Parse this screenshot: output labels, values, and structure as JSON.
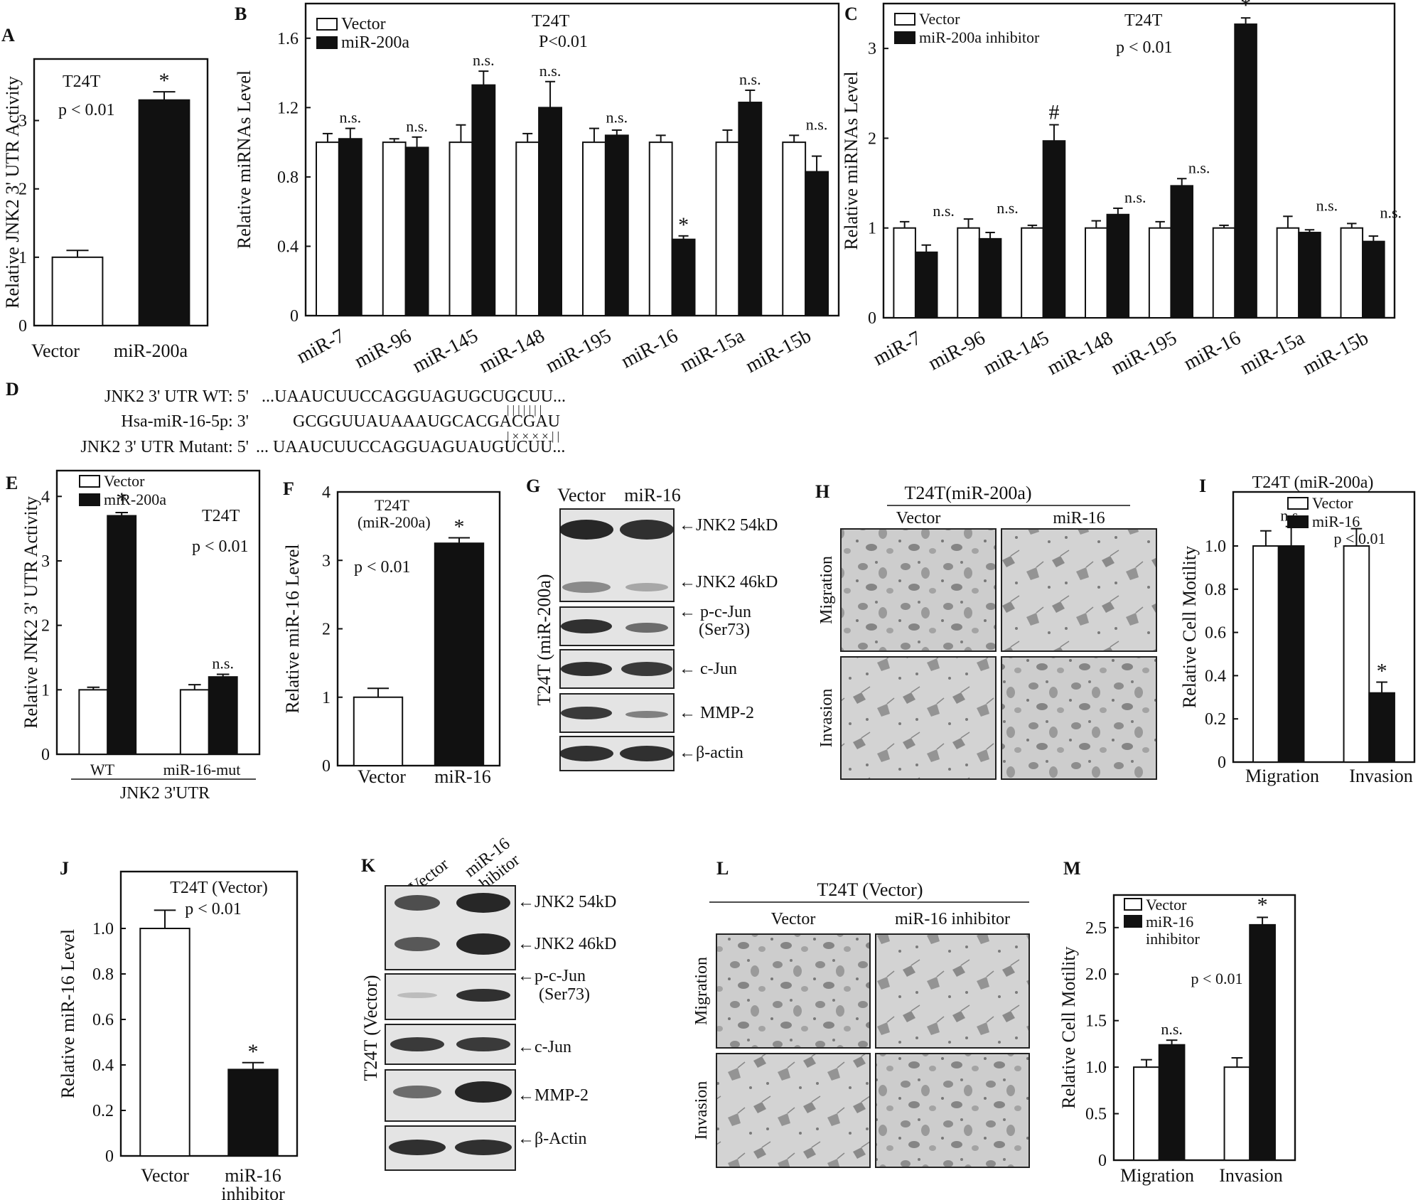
{
  "colors": {
    "ink": "#111111",
    "open": "#ffffff",
    "filled": "#111111",
    "blot_bg": "#e4e4e4",
    "micro_bg": "#c9c9c9"
  },
  "panel_letters": [
    "A",
    "B",
    "C",
    "D",
    "E",
    "F",
    "G",
    "H",
    "I",
    "J",
    "K",
    "L",
    "M"
  ],
  "chart_data": [
    {
      "id": "A",
      "type": "bar",
      "ylabel": "Relative JNK2 3' UTR Activity",
      "categories": [
        "Vector",
        "miR-200a"
      ],
      "series": [
        {
          "name": "",
          "values": [
            1.0,
            3.3
          ]
        }
      ],
      "errors": [
        0.1,
        0.12
      ],
      "colors": [
        "white",
        "black"
      ],
      "ylim": [
        0,
        3.9
      ],
      "ticks": [
        0,
        1,
        2,
        3
      ],
      "annotations": [
        "T24T",
        "p < 0.01"
      ],
      "stars": [
        "",
        "*"
      ]
    },
    {
      "id": "B",
      "type": "bar",
      "ylabel": "Relative miRNAs Level",
      "categories": [
        "miR-7",
        "miR-96",
        "miR-145",
        "miR-148",
        "miR-195",
        "miR-16",
        "miR-15a",
        "miR-15b"
      ],
      "series": [
        {
          "name": "Vector",
          "values": [
            1.0,
            1.0,
            1.0,
            1.0,
            1.0,
            1.0,
            1.0,
            1.0
          ],
          "errors": [
            0.05,
            0.02,
            0.1,
            0.05,
            0.08,
            0.04,
            0.07,
            0.04
          ]
        },
        {
          "name": "miR-200a",
          "values": [
            1.02,
            0.97,
            1.33,
            1.2,
            1.04,
            0.44,
            1.23,
            0.83
          ],
          "errors": [
            0.06,
            0.06,
            0.08,
            0.15,
            0.03,
            0.02,
            0.07,
            0.09
          ]
        }
      ],
      "labels": [
        "n.s.",
        "n.s.",
        "n.s.",
        "n.s.",
        "n.s.",
        "*",
        "n.s.",
        "n.s."
      ],
      "ylim": [
        0,
        1.8
      ],
      "ticks": [
        0,
        0.4,
        0.8,
        1.2,
        1.6
      ],
      "tick_labels": [
        "0",
        "0.4",
        "0.8",
        "1.2",
        "1.6"
      ],
      "annotations": [
        "T24T",
        "P<0.01"
      ]
    },
    {
      "id": "C",
      "type": "bar",
      "ylabel": "Relative miRNAs Level",
      "categories": [
        "miR-7",
        "miR-96",
        "miR-145",
        "miR-148",
        "miR-195",
        "miR-16",
        "miR-15a",
        "miR-15b"
      ],
      "series": [
        {
          "name": "Vector",
          "values": [
            1.0,
            1.0,
            1.0,
            1.0,
            1.0,
            1.0,
            1.0,
            1.0
          ],
          "errors": [
            0.07,
            0.1,
            0.03,
            0.08,
            0.07,
            0.03,
            0.13,
            0.05
          ]
        },
        {
          "name": "miR-200a inhibitor",
          "values": [
            0.73,
            0.88,
            1.97,
            1.15,
            1.47,
            3.27,
            0.95,
            0.85
          ],
          "errors": [
            0.08,
            0.07,
            0.18,
            0.07,
            0.08,
            0.07,
            0.03,
            0.06
          ]
        }
      ],
      "labels": [
        "n.s.",
        "n.s.",
        "#",
        "n.s.",
        "n.s.",
        "*",
        "n.s.",
        "n.s."
      ],
      "ylim": [
        0,
        3.5
      ],
      "ticks": [
        0,
        1,
        2,
        3
      ],
      "annotations": [
        "T24T",
        "p < 0.01"
      ]
    },
    {
      "id": "E",
      "type": "bar",
      "ylabel": "Relative JNK2 3' UTR  Activity",
      "categories": [
        "WT",
        "miR-16-mut"
      ],
      "xlabel": "JNK2 3'UTR",
      "series": [
        {
          "name": "Vector",
          "values": [
            1.0,
            1.0
          ],
          "errors": [
            0.04,
            0.08
          ]
        },
        {
          "name": "miR-200a",
          "values": [
            3.7,
            1.2
          ],
          "errors": [
            0.05,
            0.04
          ]
        }
      ],
      "labels": [
        "*",
        "n.s."
      ],
      "ylim": [
        0,
        4.4
      ],
      "ticks": [
        0,
        1,
        2,
        3,
        4
      ],
      "annotations": [
        "T24T",
        "p < 0.01"
      ]
    },
    {
      "id": "F",
      "type": "bar",
      "ylabel": "Relative miR-16 Level",
      "categories": [
        "Vector",
        "miR-16"
      ],
      "series": [
        {
          "name": "",
          "values": [
            1.0,
            3.25
          ]
        }
      ],
      "errors": [
        0.13,
        0.08
      ],
      "colors": [
        "white",
        "black"
      ],
      "stars": [
        "",
        "*"
      ],
      "ylim": [
        0,
        4.0
      ],
      "ticks": [
        0,
        1,
        2,
        3,
        4
      ],
      "annotations": [
        "T24T",
        "(miR-200a)",
        "p < 0.01"
      ]
    },
    {
      "id": "I",
      "type": "bar",
      "ylabel": "Relative Cell Motility",
      "title": "T24T (miR-200a)",
      "categories": [
        "Migration",
        "Invasion"
      ],
      "series": [
        {
          "name": "Vector",
          "values": [
            1.0,
            1.0
          ],
          "errors": [
            0.07,
            0.08
          ]
        },
        {
          "name": "miR-16",
          "values": [
            1.0,
            0.32
          ],
          "errors": [
            0.09,
            0.05
          ]
        }
      ],
      "labels": [
        "n.s.",
        "*"
      ],
      "extra": "p < 0.01",
      "ylim": [
        0,
        1.25
      ],
      "ticks": [
        0,
        0.2,
        0.4,
        0.6,
        0.8,
        1.0
      ],
      "tick_labels": [
        "0",
        "0.2",
        "0.4",
        "0.6",
        "0.8",
        "1.0"
      ]
    },
    {
      "id": "J",
      "type": "bar",
      "ylabel": "Relative miR-16 Level",
      "categories": [
        "Vector",
        "miR-16 inhibitor"
      ],
      "category_lines": [
        [
          "Vector"
        ],
        [
          "miR-16",
          "inhibitor"
        ]
      ],
      "series": [
        {
          "name": "",
          "values": [
            1.0,
            0.38
          ]
        }
      ],
      "errors": [
        0.08,
        0.03
      ],
      "colors": [
        "white",
        "black"
      ],
      "stars": [
        "",
        "*"
      ],
      "ylim": [
        0,
        1.25
      ],
      "ticks": [
        0,
        0.2,
        0.4,
        0.6,
        0.8,
        1.0
      ],
      "tick_labels": [
        "0",
        "0.2",
        "0.4",
        "0.6",
        "0.8",
        "1.0"
      ],
      "annotations": [
        "T24T  (Vector)",
        "p < 0.01"
      ]
    },
    {
      "id": "M",
      "type": "bar",
      "ylabel": "Relative Cell Motility",
      "categories": [
        "Migration",
        "Invasion"
      ],
      "series": [
        {
          "name": "Vector",
          "values": [
            1.0,
            1.0
          ],
          "errors": [
            0.08,
            0.1
          ]
        },
        {
          "name": "miR-16 inhibitor",
          "values": [
            1.24,
            2.53
          ],
          "errors": [
            0.05,
            0.08
          ]
        }
      ],
      "labels": [
        "n.s.",
        "*"
      ],
      "extra": "p < 0.01",
      "ylim": [
        0,
        2.85
      ],
      "ticks": [
        0,
        0.5,
        1.0,
        1.5,
        2.0,
        2.5
      ],
      "tick_labels": [
        "0",
        "0.5",
        "1.0",
        "1.5",
        "2.0",
        "2.5"
      ]
    }
  ],
  "panel_d": {
    "rows": [
      {
        "label": "JNK2 3' UTR WT: 5'",
        "seq": "...UAAUCUUCCAGGUAGUGCUGCUU..."
      },
      {
        "label": "Hsa-miR-16-5p: 3'",
        "seq": "GCGGUUAUAAAUGCACGACGAU"
      },
      {
        "label": "JNK2 3' UTR Mutant: 5'",
        "seq": "... UAAUCUUCCAGGUAGUAUGUCUU..."
      }
    ],
    "pairing_top": "|  |  |  |  |  |  |",
    "pairing_bottom": "|  × × × ×  |  |"
  },
  "panel_g": {
    "lanes": [
      "Vector",
      "miR-16"
    ],
    "side_label": "T24T (miR-200a)",
    "bands": [
      "←JNK2 54kD",
      "←JNK2 46kD",
      "← p-c-Jun",
      "(Ser73)",
      "← c-Jun",
      "← MMP-2",
      "←β-actin"
    ]
  },
  "panel_h": {
    "title": "T24T(miR-200a)",
    "cols": [
      "Vector",
      "miR-16"
    ],
    "rows": [
      "Migration",
      "Invasion"
    ]
  },
  "panel_k": {
    "lanes": [
      "Vector",
      "miR-16",
      "inhibitor"
    ],
    "side_label": "T24T (Vector)",
    "bands": [
      "←JNK2  54kD",
      "←JNK2  46kD",
      "←p-c-Jun",
      "(Ser73)",
      "←c-Jun",
      "←MMP-2",
      "←β-Actin"
    ]
  },
  "panel_l": {
    "title": "T24T (Vector)",
    "cols": [
      "Vector",
      "miR-16  inhibitor"
    ],
    "rows": [
      "Migration",
      "Invasion"
    ]
  }
}
